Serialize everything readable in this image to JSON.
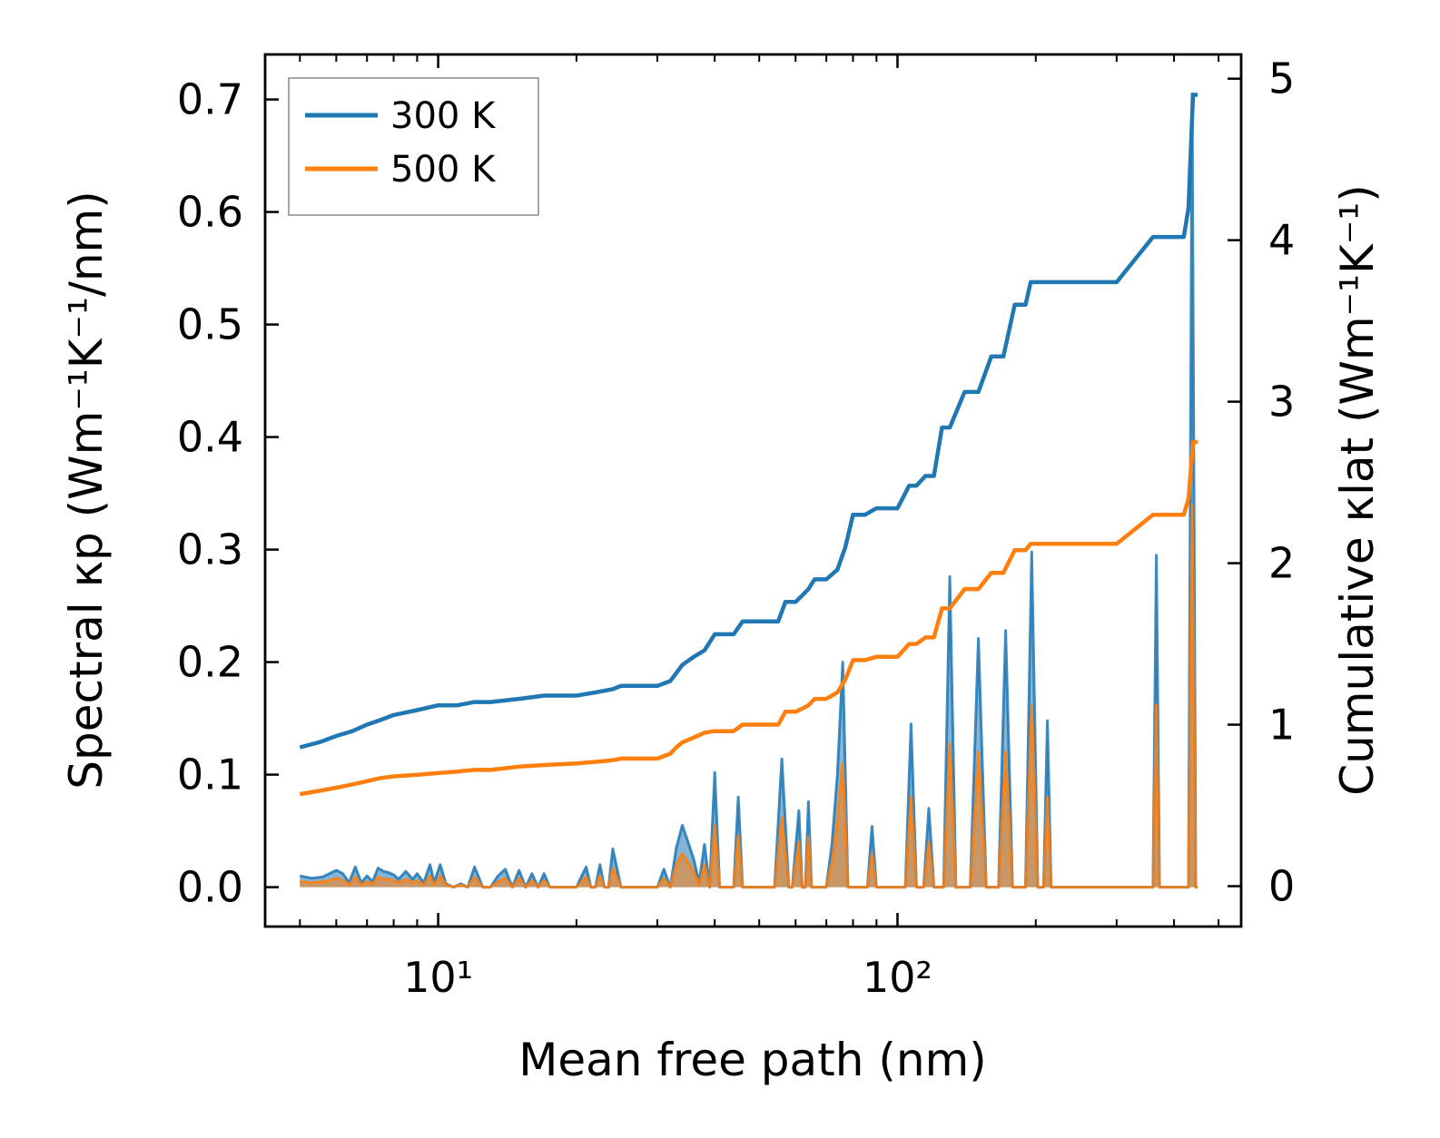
{
  "chart_data": {
    "type": "line",
    "xscale": "log",
    "xlabel": "Mean free path (nm)",
    "ylabel_left": "Spectral κp (Wm⁻¹K⁻¹/nm)",
    "ylabel_right": "Cumulative κlat (Wm⁻¹K⁻¹)",
    "xlim": [
      4.2,
      560
    ],
    "ylim_left": [
      -0.035,
      0.74
    ],
    "ylim_right": [
      -0.25,
      5.15
    ],
    "x_major_ticks": [
      10,
      100
    ],
    "x_major_tick_labels": [
      "10¹",
      "10²"
    ],
    "y_left_ticks": [
      0.0,
      0.1,
      0.2,
      0.3,
      0.4,
      0.5,
      0.6,
      0.7
    ],
    "y_left_tick_labels": [
      "0.0",
      "0.1",
      "0.2",
      "0.3",
      "0.4",
      "0.5",
      "0.6",
      "0.7"
    ],
    "y_right_ticks": [
      0,
      1,
      2,
      3,
      4,
      5
    ],
    "y_right_tick_labels": [
      "0",
      "1",
      "2",
      "3",
      "4",
      "5"
    ],
    "legend": {
      "location": "upper-left",
      "entries": [
        {
          "label": "300 K",
          "color": "#1f77b4"
        },
        {
          "label": "500 K",
          "color": "#ff7f0e"
        }
      ]
    },
    "series": [
      {
        "name": "300 K",
        "role": "cumulative",
        "axis": "right",
        "color": "#1f77b4",
        "x": [
          5.0,
          5.5,
          6.0,
          6.5,
          7.0,
          7.5,
          8.0,
          9.0,
          10.0,
          11.0,
          12.0,
          13.0,
          15.0,
          17.0,
          20.0,
          22.0,
          24.0,
          25.0,
          28.0,
          30.0,
          32.0,
          33.0,
          34.0,
          36.0,
          38.0,
          40.0,
          44.0,
          46.0,
          50.0,
          55.0,
          57.0,
          60.0,
          62.0,
          64.0,
          66.0,
          70.0,
          74.0,
          77.0,
          80.0,
          85.0,
          90.0,
          100.0,
          106.0,
          110.0,
          115.0,
          120.0,
          125.0,
          130.0,
          140.0,
          150.0,
          160.0,
          170.0,
          180.0,
          190.0,
          195.0,
          205.0,
          210.0,
          218.0,
          240.0,
          300.0,
          360.0,
          370.0,
          400.0,
          420.0,
          430.0,
          440.0,
          450.0
        ],
        "y": [
          0.86,
          0.89,
          0.93,
          0.96,
          1.0,
          1.03,
          1.06,
          1.09,
          1.12,
          1.12,
          1.14,
          1.14,
          1.16,
          1.18,
          1.18,
          1.2,
          1.22,
          1.24,
          1.24,
          1.24,
          1.27,
          1.32,
          1.37,
          1.42,
          1.46,
          1.56,
          1.56,
          1.64,
          1.64,
          1.64,
          1.76,
          1.76,
          1.8,
          1.84,
          1.9,
          1.9,
          1.96,
          2.1,
          2.3,
          2.3,
          2.34,
          2.34,
          2.48,
          2.48,
          2.54,
          2.54,
          2.84,
          2.84,
          3.06,
          3.06,
          3.28,
          3.28,
          3.6,
          3.6,
          3.74,
          3.74,
          3.74,
          3.74,
          3.74,
          3.74,
          4.02,
          4.02,
          4.02,
          4.02,
          4.2,
          4.9,
          4.9
        ]
      },
      {
        "name": "500 K",
        "role": "cumulative",
        "axis": "right",
        "color": "#ff7f0e",
        "x": [
          5.0,
          5.5,
          6.0,
          6.5,
          7.0,
          7.5,
          8.0,
          9.0,
          10.0,
          11.0,
          12.0,
          13.0,
          15.0,
          17.0,
          20.0,
          22.0,
          24.0,
          25.0,
          28.0,
          30.0,
          32.0,
          33.0,
          34.0,
          36.0,
          38.0,
          40.0,
          44.0,
          46.0,
          50.0,
          55.0,
          57.0,
          60.0,
          62.0,
          64.0,
          66.0,
          70.0,
          74.0,
          77.0,
          80.0,
          85.0,
          90.0,
          100.0,
          106.0,
          110.0,
          115.0,
          120.0,
          125.0,
          130.0,
          140.0,
          150.0,
          160.0,
          170.0,
          180.0,
          190.0,
          195.0,
          205.0,
          210.0,
          218.0,
          240.0,
          300.0,
          360.0,
          370.0,
          400.0,
          420.0,
          430.0,
          440.0,
          450.0
        ],
        "y": [
          0.57,
          0.59,
          0.61,
          0.63,
          0.65,
          0.67,
          0.68,
          0.69,
          0.7,
          0.71,
          0.72,
          0.72,
          0.74,
          0.75,
          0.76,
          0.77,
          0.78,
          0.79,
          0.79,
          0.79,
          0.82,
          0.86,
          0.89,
          0.92,
          0.95,
          0.96,
          0.96,
          1.0,
          1.0,
          1.0,
          1.08,
          1.08,
          1.1,
          1.12,
          1.16,
          1.16,
          1.2,
          1.28,
          1.4,
          1.4,
          1.42,
          1.42,
          1.5,
          1.5,
          1.54,
          1.54,
          1.72,
          1.72,
          1.84,
          1.84,
          1.94,
          1.94,
          2.08,
          2.08,
          2.12,
          2.12,
          2.12,
          2.12,
          2.12,
          2.12,
          2.3,
          2.3,
          2.3,
          2.3,
          2.4,
          2.75,
          2.75
        ]
      },
      {
        "name": "300 K",
        "role": "spectral",
        "axis": "left",
        "color": "#1f77b4",
        "x": [
          5.0,
          5.3,
          5.6,
          5.8,
          6.0,
          6.2,
          6.4,
          6.6,
          6.8,
          7.0,
          7.2,
          7.4,
          7.6,
          7.8,
          8.0,
          8.2,
          8.5,
          8.8,
          9.0,
          9.3,
          9.6,
          9.8,
          10.1,
          10.4,
          10.8,
          11.2,
          11.6,
          12.0,
          12.5,
          13.0,
          13.5,
          14.0,
          14.5,
          15.0,
          15.5,
          16.0,
          16.5,
          17.0,
          17.5,
          18.0,
          19.0,
          20.0,
          21.0,
          21.5,
          22.0,
          22.5,
          23.0,
          23.5,
          24.0,
          25.0,
          26.0,
          27.0,
          28.0,
          30.0,
          31.0,
          32.0,
          33.0,
          34.0,
          35.0,
          36.0,
          37.0,
          38.0,
          39.0,
          40.0,
          41.0,
          42.0,
          43.0,
          44.0,
          45.0,
          46.0,
          47.0,
          48.0,
          52.0,
          54.0,
          56.0,
          58.0,
          59.0,
          61.0,
          62.0,
          63.0,
          64.0,
          65.0,
          66.0,
          67.0,
          70.0,
          72.0,
          74.0,
          76.0,
          78.0,
          80.0,
          82.0,
          86.0,
          88.0,
          90.0,
          100.0,
          104.0,
          107.0,
          110.0,
          114.0,
          117.0,
          120.0,
          126.0,
          130.0,
          134.0,
          144.0,
          150.0,
          156.0,
          166.0,
          172.0,
          178.0,
          190.0,
          196.0,
          202.0,
          208.0,
          212.0,
          216.0,
          220.0,
          350.0,
          360.0,
          366.0,
          372.0,
          420.0,
          430.0,
          438.0,
          446.0,
          450.0
        ],
        "y": [
          0.01,
          0.008,
          0.009,
          0.012,
          0.015,
          0.012,
          0.004,
          0.018,
          0.004,
          0.01,
          0.005,
          0.017,
          0.014,
          0.013,
          0.011,
          0.007,
          0.014,
          0.007,
          0.012,
          0.004,
          0.02,
          0.004,
          0.02,
          0.003,
          0.0,
          0.003,
          0.0,
          0.018,
          0.0,
          0.0,
          0.01,
          0.016,
          0.0,
          0.015,
          0.0,
          0.012,
          0.0,
          0.012,
          0.0,
          0.0,
          0.0,
          0.0,
          0.018,
          0.0,
          0.0,
          0.02,
          0.0,
          0.0,
          0.034,
          0.0,
          0.0,
          0.0,
          0.0,
          0.0,
          0.016,
          0.0,
          0.035,
          0.055,
          0.04,
          0.025,
          0.004,
          0.038,
          0.0,
          0.102,
          0.0,
          0.0,
          0.0,
          0.0,
          0.08,
          0.0,
          0.0,
          0.0,
          0.0,
          0.0,
          0.114,
          0.0,
          0.0,
          0.068,
          0.0,
          0.0,
          0.076,
          0.0,
          0.0,
          0.0,
          0.0,
          0.038,
          0.1,
          0.2,
          0.0,
          0.0,
          0.0,
          0.0,
          0.054,
          0.0,
          0.0,
          0.0,
          0.145,
          0.0,
          0.0,
          0.07,
          0.0,
          0.0,
          0.276,
          0.0,
          0.0,
          0.221,
          0.0,
          0.0,
          0.228,
          0.0,
          0.0,
          0.298,
          0.0,
          0.0,
          0.148,
          0.0,
          0.0,
          0.0,
          0.0,
          0.295,
          0.0,
          0.0,
          0.0,
          0.705,
          0.0,
          0.0
        ]
      },
      {
        "name": "500 K",
        "role": "spectral",
        "axis": "left",
        "color": "#ff7f0e",
        "x": [
          5.0,
          5.3,
          5.6,
          5.8,
          6.0,
          6.2,
          6.4,
          6.6,
          6.8,
          7.0,
          7.2,
          7.4,
          7.6,
          7.8,
          8.0,
          8.2,
          8.5,
          8.8,
          9.0,
          9.3,
          9.6,
          9.8,
          10.1,
          10.4,
          10.8,
          11.2,
          11.6,
          12.0,
          12.5,
          13.0,
          13.5,
          14.0,
          14.5,
          15.0,
          15.5,
          16.0,
          16.5,
          17.0,
          17.5,
          18.0,
          19.0,
          20.0,
          21.0,
          21.5,
          22.0,
          22.5,
          23.0,
          23.5,
          24.0,
          25.0,
          26.0,
          27.0,
          28.0,
          30.0,
          31.0,
          32.0,
          33.0,
          34.0,
          35.0,
          36.0,
          37.0,
          38.0,
          39.0,
          40.0,
          41.0,
          42.0,
          43.0,
          44.0,
          45.0,
          46.0,
          47.0,
          48.0,
          52.0,
          54.0,
          56.0,
          58.0,
          59.0,
          61.0,
          62.0,
          63.0,
          64.0,
          65.0,
          66.0,
          67.0,
          70.0,
          72.0,
          74.0,
          76.0,
          78.0,
          80.0,
          82.0,
          86.0,
          88.0,
          90.0,
          100.0,
          104.0,
          107.0,
          110.0,
          114.0,
          117.0,
          120.0,
          126.0,
          130.0,
          134.0,
          144.0,
          150.0,
          156.0,
          166.0,
          172.0,
          178.0,
          190.0,
          196.0,
          202.0,
          208.0,
          212.0,
          216.0,
          220.0,
          350.0,
          360.0,
          366.0,
          372.0,
          420.0,
          430.0,
          438.0,
          446.0,
          450.0
        ],
        "y": [
          0.005,
          0.004,
          0.005,
          0.006,
          0.008,
          0.006,
          0.002,
          0.009,
          0.002,
          0.005,
          0.003,
          0.009,
          0.007,
          0.007,
          0.006,
          0.004,
          0.007,
          0.004,
          0.006,
          0.002,
          0.01,
          0.002,
          0.01,
          0.002,
          0.0,
          0.002,
          0.0,
          0.009,
          0.0,
          0.0,
          0.005,
          0.008,
          0.0,
          0.008,
          0.0,
          0.006,
          0.0,
          0.006,
          0.0,
          0.0,
          0.0,
          0.0,
          0.009,
          0.0,
          0.0,
          0.01,
          0.0,
          0.0,
          0.017,
          0.0,
          0.0,
          0.0,
          0.0,
          0.0,
          0.008,
          0.0,
          0.02,
          0.03,
          0.022,
          0.014,
          0.002,
          0.02,
          0.0,
          0.055,
          0.0,
          0.0,
          0.0,
          0.0,
          0.046,
          0.0,
          0.0,
          0.0,
          0.0,
          0.0,
          0.062,
          0.0,
          0.0,
          0.04,
          0.0,
          0.0,
          0.045,
          0.0,
          0.0,
          0.0,
          0.0,
          0.022,
          0.06,
          0.11,
          0.0,
          0.0,
          0.0,
          0.0,
          0.03,
          0.0,
          0.0,
          0.0,
          0.08,
          0.0,
          0.0,
          0.04,
          0.0,
          0.0,
          0.128,
          0.0,
          0.0,
          0.12,
          0.0,
          0.0,
          0.12,
          0.0,
          0.0,
          0.162,
          0.0,
          0.0,
          0.08,
          0.0,
          0.0,
          0.0,
          0.0,
          0.162,
          0.0,
          0.0,
          0.0,
          0.34,
          0.0,
          0.0
        ]
      }
    ]
  }
}
